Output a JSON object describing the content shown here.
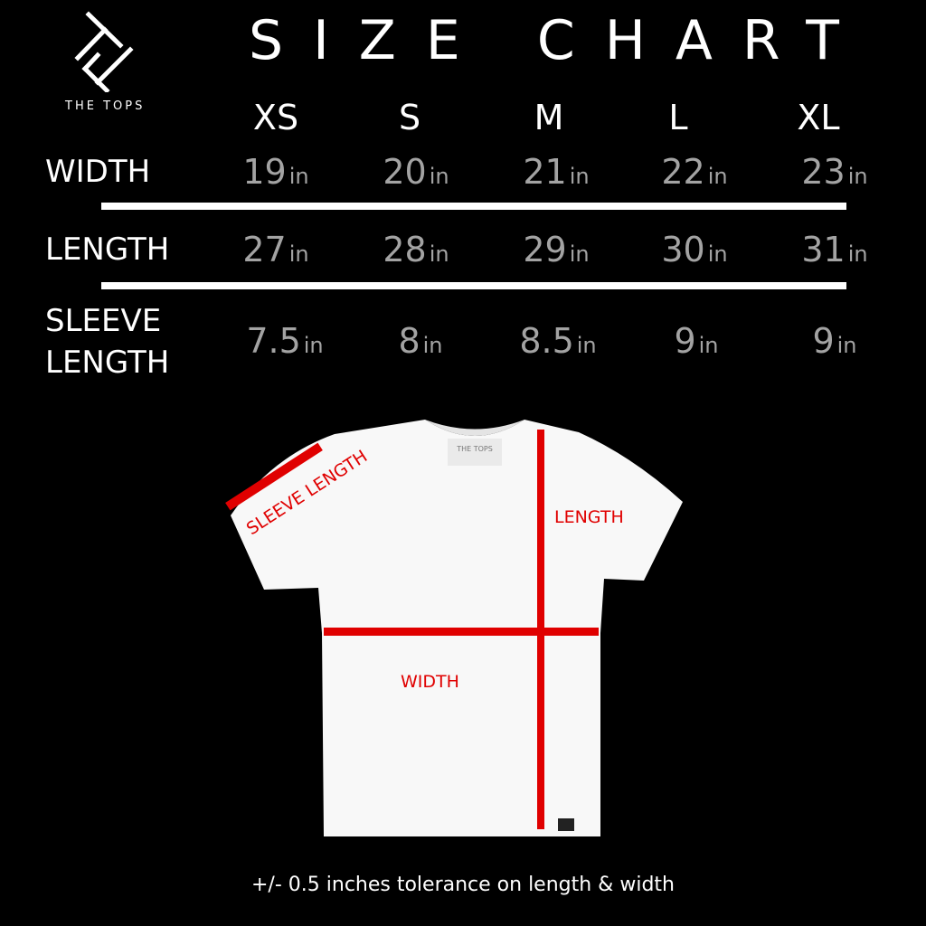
{
  "header": {
    "title": "SIZE CHART",
    "brand": "THE TOPS",
    "logo_icon": "interlocked-t-logo"
  },
  "sizes": [
    "XS",
    "S",
    "M",
    "L",
    "XL"
  ],
  "rows": [
    {
      "label": "WIDTH",
      "values": [
        "19",
        "20",
        "21",
        "22",
        "23"
      ],
      "unit": "in"
    },
    {
      "label": "LENGTH",
      "values": [
        "27",
        "28",
        "29",
        "30",
        "31"
      ],
      "unit": "in"
    },
    {
      "label_line1": "SLEEVE",
      "label_line2": "LENGTH",
      "values": [
        "7.5",
        "8",
        "8.5",
        "9",
        "9"
      ],
      "unit": "in"
    }
  ],
  "diagram": {
    "sleeve_label": "SLEEVE LENGTH",
    "length_label": "LENGTH",
    "width_label": "WIDTH",
    "shirt_tag": "THE TOPS",
    "marker_color": "#e00000"
  },
  "footer": "+/- 0.5 inches tolerance on length & width",
  "colors": {
    "background": "#000000",
    "text": "#ffffff",
    "values": "#a3a3a3"
  }
}
